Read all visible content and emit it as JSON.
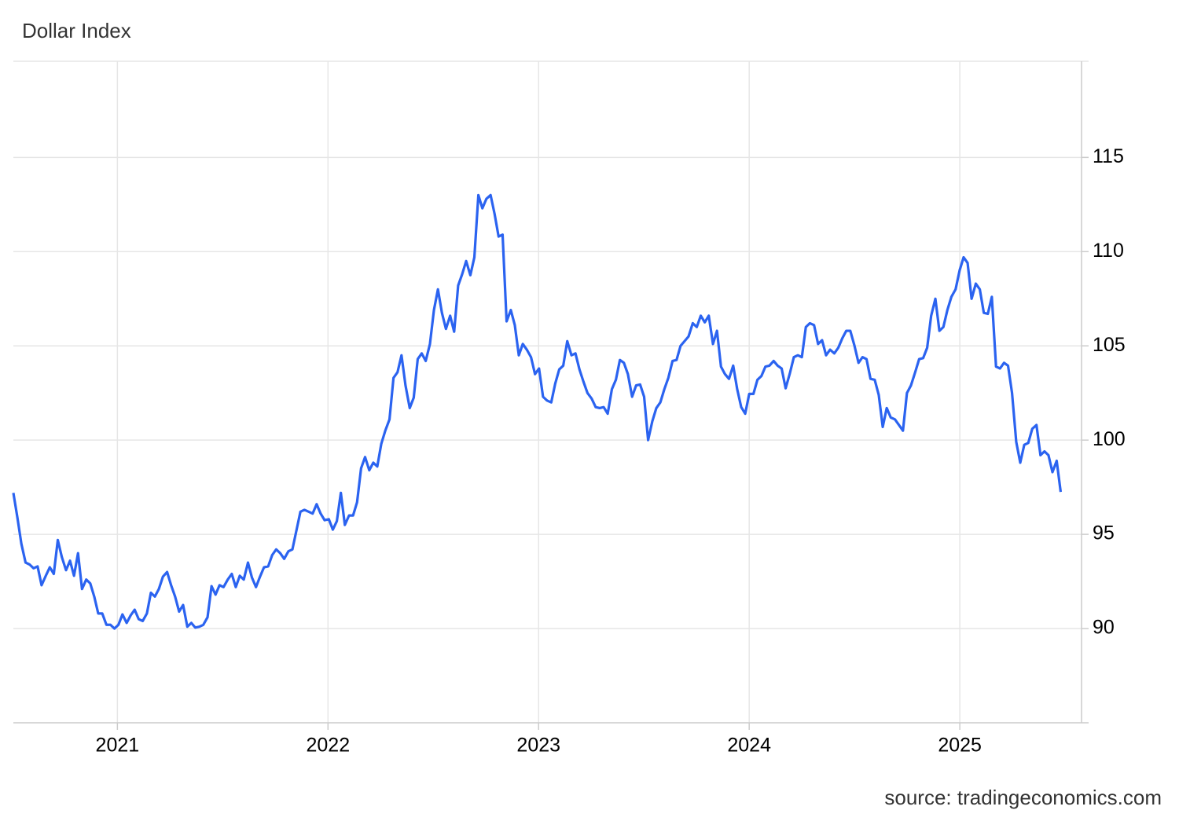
{
  "chart_data": {
    "type": "line",
    "title": "Dollar Index",
    "source": "source: tradingeconomics.com",
    "xlim": [
      2020.506,
      2025.578
    ],
    "xticks": [
      2021,
      2022,
      2023,
      2024,
      2025
    ],
    "ylim": [
      85,
      120.1
    ],
    "yticks": [
      90,
      95,
      100,
      105,
      110,
      115
    ],
    "grid": true,
    "x": [
      2020.506,
      2020.525,
      2020.544,
      2020.564,
      2020.583,
      2020.602,
      2020.621,
      2020.64,
      2020.66,
      2020.679,
      2020.698,
      2020.717,
      2020.736,
      2020.756,
      2020.775,
      2020.794,
      2020.813,
      2020.832,
      2020.852,
      2020.871,
      2020.89,
      2020.909,
      2020.928,
      2020.948,
      2020.967,
      2020.986,
      2021.005,
      2021.024,
      2021.044,
      2021.063,
      2021.082,
      2021.101,
      2021.12,
      2021.14,
      2021.159,
      2021.178,
      2021.197,
      2021.216,
      2021.236,
      2021.255,
      2021.274,
      2021.293,
      2021.312,
      2021.332,
      2021.351,
      2021.37,
      2021.389,
      2021.408,
      2021.428,
      2021.447,
      2021.466,
      2021.485,
      2021.504,
      2021.524,
      2021.543,
      2021.562,
      2021.581,
      2021.6,
      2021.62,
      2021.639,
      2021.658,
      2021.677,
      2021.696,
      2021.716,
      2021.735,
      2021.754,
      2021.773,
      2021.792,
      2021.812,
      2021.831,
      2021.85,
      2021.869,
      2021.888,
      2021.908,
      2021.927,
      2021.946,
      2021.965,
      2021.984,
      2022.004,
      2022.023,
      2022.042,
      2022.061,
      2022.08,
      2022.1,
      2022.119,
      2022.138,
      2022.157,
      2022.176,
      2022.196,
      2022.215,
      2022.234,
      2022.253,
      2022.272,
      2022.292,
      2022.311,
      2022.33,
      2022.349,
      2022.368,
      2022.388,
      2022.407,
      2022.426,
      2022.445,
      2022.464,
      2022.484,
      2022.503,
      2022.522,
      2022.541,
      2022.56,
      2022.58,
      2022.599,
      2022.618,
      2022.637,
      2022.656,
      2022.676,
      2022.695,
      2022.714,
      2022.733,
      2022.752,
      2022.772,
      2022.791,
      2022.81,
      2022.829,
      2022.848,
      2022.868,
      2022.887,
      2022.906,
      2022.925,
      2022.944,
      2022.964,
      2022.983,
      2023.002,
      2023.021,
      2023.04,
      2023.06,
      2023.079,
      2023.098,
      2023.117,
      2023.136,
      2023.156,
      2023.175,
      2023.194,
      2023.213,
      2023.232,
      2023.252,
      2023.271,
      2023.29,
      2023.309,
      2023.328,
      2023.348,
      2023.367,
      2023.386,
      2023.405,
      2023.424,
      2023.444,
      2023.463,
      2023.482,
      2023.501,
      2023.52,
      2023.54,
      2023.559,
      2023.578,
      2023.597,
      2023.616,
      2023.636,
      2023.655,
      2023.674,
      2023.693,
      2023.712,
      2023.732,
      2023.751,
      2023.77,
      2023.789,
      2023.808,
      2023.828,
      2023.847,
      2023.866,
      2023.885,
      2023.904,
      2023.924,
      2023.943,
      2023.962,
      2023.981,
      2024.0,
      2024.02,
      2024.039,
      2024.058,
      2024.077,
      2024.096,
      2024.116,
      2024.135,
      2024.154,
      2024.173,
      2024.192,
      2024.212,
      2024.231,
      2024.25,
      2024.269,
      2024.288,
      2024.308,
      2024.327,
      2024.346,
      2024.365,
      2024.384,
      2024.404,
      2024.423,
      2024.442,
      2024.461,
      2024.48,
      2024.5,
      2024.519,
      2024.538,
      2024.557,
      2024.576,
      2024.596,
      2024.615,
      2024.634,
      2024.653,
      2024.672,
      2024.692,
      2024.711,
      2024.73,
      2024.749,
      2024.768,
      2024.788,
      2024.807,
      2024.826,
      2024.845,
      2024.864,
      2024.884,
      2024.903,
      2024.922,
      2024.941,
      2024.96,
      2024.98,
      2024.999,
      2025.018,
      2025.037,
      2025.056,
      2025.076,
      2025.095,
      2025.114,
      2025.133,
      2025.152,
      2025.172,
      2025.191,
      2025.21,
      2025.229,
      2025.248,
      2025.268,
      2025.287,
      2025.306,
      2025.325,
      2025.344,
      2025.364,
      2025.383,
      2025.402,
      2025.421,
      2025.44,
      2025.46,
      2025.479
    ],
    "series": [
      {
        "name": "Dollar Index",
        "color": "#2b63f0",
        "values": [
          97.2,
          95.9,
          94.5,
          93.5,
          93.4,
          93.2,
          93.3,
          92.3,
          92.8,
          93.25,
          92.9,
          94.7,
          93.8,
          93.1,
          93.6,
          92.8,
          94.0,
          92.1,
          92.6,
          92.4,
          91.7,
          90.8,
          90.8,
          90.2,
          90.2,
          90.0,
          90.2,
          90.75,
          90.3,
          90.7,
          91.0,
          90.5,
          90.4,
          90.8,
          91.9,
          91.7,
          92.1,
          92.75,
          93.0,
          92.3,
          91.7,
          90.9,
          91.25,
          90.1,
          90.3,
          90.05,
          90.1,
          90.2,
          90.6,
          92.25,
          91.8,
          92.3,
          92.2,
          92.6,
          92.9,
          92.2,
          92.8,
          92.6,
          93.5,
          92.7,
          92.2,
          92.75,
          93.25,
          93.3,
          93.9,
          94.2,
          94.0,
          93.7,
          94.1,
          94.2,
          95.2,
          96.2,
          96.3,
          96.2,
          96.1,
          96.6,
          96.1,
          95.75,
          95.8,
          95.25,
          95.7,
          97.2,
          95.5,
          96.0,
          96.0,
          96.7,
          98.5,
          99.1,
          98.4,
          98.8,
          98.6,
          99.8,
          100.5,
          101.1,
          103.3,
          103.6,
          104.5,
          102.9,
          101.7,
          102.25,
          104.3,
          104.6,
          104.2,
          105.1,
          106.9,
          108.0,
          106.75,
          105.9,
          106.6,
          105.75,
          108.2,
          108.8,
          109.5,
          108.75,
          109.7,
          113.0,
          112.3,
          112.8,
          113.0,
          112.0,
          110.8,
          110.9,
          106.3,
          106.9,
          106.1,
          104.5,
          105.1,
          104.8,
          104.4,
          103.5,
          103.8,
          102.3,
          102.1,
          102.0,
          103.0,
          103.75,
          103.95,
          105.25,
          104.5,
          104.6,
          103.75,
          103.1,
          102.5,
          102.2,
          101.75,
          101.7,
          101.75,
          101.4,
          102.7,
          103.2,
          104.25,
          104.1,
          103.5,
          102.3,
          102.9,
          102.95,
          102.3,
          100.0,
          101.0,
          101.7,
          102.0,
          102.7,
          103.3,
          104.2,
          104.25,
          105.0,
          105.25,
          105.5,
          106.2,
          106.0,
          106.6,
          106.25,
          106.6,
          105.1,
          105.8,
          103.9,
          103.5,
          103.25,
          103.95,
          102.7,
          101.75,
          101.4,
          102.45,
          102.45,
          103.2,
          103.4,
          103.9,
          103.95,
          104.2,
          103.95,
          103.8,
          102.75,
          103.5,
          104.4,
          104.5,
          104.4,
          106.0,
          106.2,
          106.1,
          105.1,
          105.3,
          104.5,
          104.8,
          104.6,
          104.9,
          105.4,
          105.8,
          105.8,
          105.0,
          104.1,
          104.4,
          104.3,
          103.25,
          103.2,
          102.4,
          100.7,
          101.7,
          101.2,
          101.1,
          100.8,
          100.5,
          102.5,
          102.9,
          103.6,
          104.3,
          104.35,
          104.9,
          106.6,
          107.5,
          105.8,
          106.0,
          106.9,
          107.6,
          108.0,
          109.0,
          109.7,
          109.4,
          107.5,
          108.3,
          108.0,
          106.75,
          106.7,
          107.6,
          103.9,
          103.8,
          104.1,
          103.95,
          102.5,
          99.9,
          98.8,
          99.75,
          99.85,
          100.6,
          100.8,
          99.2,
          99.4,
          99.2,
          98.3,
          98.9,
          97.25
        ]
      }
    ]
  }
}
